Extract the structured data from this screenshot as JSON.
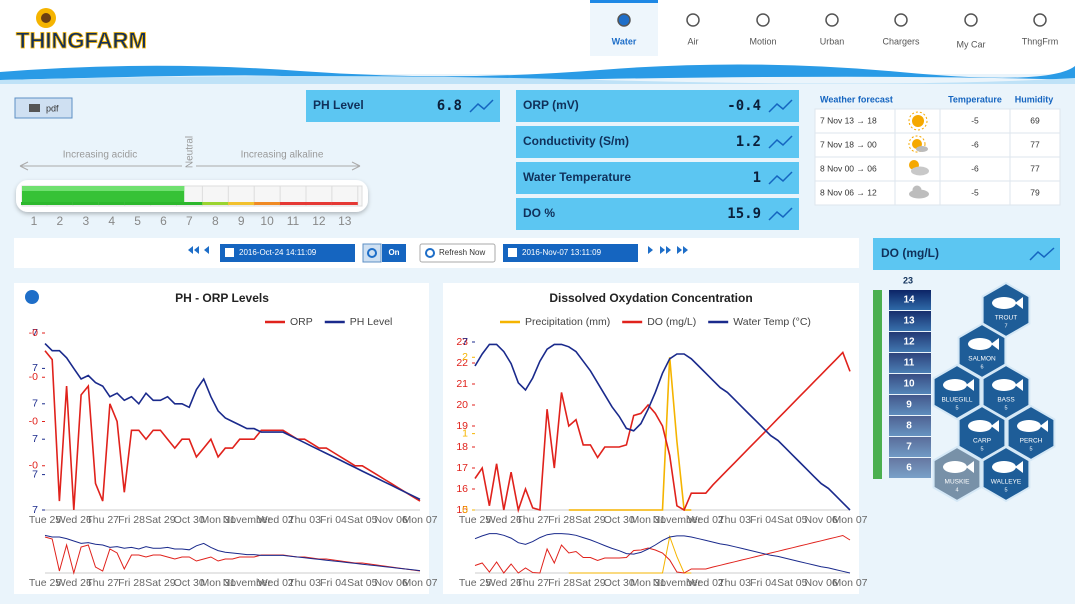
{
  "header": {
    "logo": "THINGFARM",
    "nav": [
      {
        "label": "Water",
        "active": true
      },
      {
        "label": "Air"
      },
      {
        "label": "Motion"
      },
      {
        "label": "Urban"
      },
      {
        "label": "Chargers"
      },
      {
        "label": "My Car"
      },
      {
        "label": "ThngFrm"
      }
    ]
  },
  "toolbar": {
    "pdf": "pdf"
  },
  "ph_scale": {
    "acidic": "Increasing acidic",
    "neutral": "Neutral",
    "alkaline": "Increasing alkaline",
    "ticks": [
      1,
      2,
      3,
      4,
      5,
      6,
      7,
      8,
      9,
      10,
      11,
      12,
      13
    ]
  },
  "metrics": [
    {
      "label": "PH Level",
      "value": 6.8
    },
    {
      "label": "ORP (mV)",
      "value": -0.4,
      "color": "#1fd21f"
    },
    {
      "label": "Conductivity (S/m)",
      "value": 1.2
    },
    {
      "label": "Water Temperature",
      "value": 1
    },
    {
      "label": "DO %",
      "value": 15.9
    }
  ],
  "weather": {
    "headers": [
      "Weather forecast",
      "Temperature",
      "Humidity"
    ],
    "rows": [
      {
        "period": "7 Nov 13 → 18",
        "temperature": -5,
        "humidity": 69
      },
      {
        "period": "7 Nov 18 → 00",
        "temperature": -6,
        "humidity": 77
      },
      {
        "period": "8 Nov 00 → 06",
        "temperature": -6,
        "humidity": 77
      },
      {
        "period": "8 Nov 06 → 12",
        "temperature": -5,
        "humidity": 79
      }
    ]
  },
  "controls": {
    "from": "2016-Oct-24 14:11:09",
    "toggle": "On",
    "refresh": "Refresh Now",
    "to": "2016-Nov-07 13:11:09"
  },
  "do_panel": {
    "title": "DO (mg/L)",
    "max": 23,
    "levels": [
      14,
      13,
      12,
      11,
      10,
      9,
      8,
      7,
      6
    ],
    "fish": [
      {
        "name": "TROUT",
        "value": 7
      },
      {
        "name": "SALMON",
        "value": 6
      },
      {
        "name": "BLUEGILL",
        "value": 5
      },
      {
        "name": "BASS",
        "value": 5
      },
      {
        "name": "CARP",
        "value": 5
      },
      {
        "name": "PERCH",
        "value": 5
      },
      {
        "name": "MUSKIE",
        "value": 4
      },
      {
        "name": "WALLEYE",
        "value": 5
      }
    ]
  },
  "charts": [
    {
      "type": "line",
      "title": "PH - ORP Levels",
      "categories": [
        "Tue 25",
        "Wed 26",
        "Thu 27",
        "Fri 28",
        "Sat 29",
        "Oct 30",
        "Mon 31",
        "November",
        "Wed 02",
        "Thu 03",
        "Fri 04",
        "Sat 05",
        "Nov 06",
        "Mon 07"
      ],
      "ylim": [
        6.5,
        7.0
      ],
      "yticks": [
        {
          "value": 6.5,
          "label": "7"
        },
        {
          "value": 6.6,
          "label": "7"
        },
        {
          "value": 6.7,
          "label": "7"
        },
        {
          "value": 6.8,
          "label": "7"
        },
        {
          "value": 6.9,
          "label": "7"
        },
        {
          "value": 7.0,
          "label": "7"
        }
      ],
      "y2lim": [
        -0.5,
        -0.3
      ],
      "y2ticks": [
        {
          "value": -0.45,
          "label": "-0"
        },
        {
          "value": -0.4,
          "label": "-0"
        },
        {
          "value": -0.35,
          "label": "-0"
        },
        {
          "value": -0.3,
          "label": "-0"
        }
      ],
      "series": [
        {
          "name": "ORP",
          "color": "#e0221c",
          "axis": "y2",
          "values": [
            -0.32,
            -0.33,
            -0.49,
            -0.36,
            -0.5,
            -0.37,
            -0.36,
            -0.47,
            -0.49,
            -0.38,
            -0.4,
            -0.48,
            -0.41,
            -0.41,
            -0.42,
            -0.41,
            -0.41,
            -0.42,
            -0.43,
            -0.42,
            -0.42,
            -0.44,
            -0.43,
            -0.42,
            -0.44,
            -0.43,
            -0.43,
            -0.42,
            -0.42,
            -0.42,
            -0.41,
            -0.41,
            -0.41,
            -0.41,
            -0.415,
            -0.42,
            -0.42,
            -0.425,
            -0.43,
            -0.43,
            -0.435,
            -0.44,
            -0.445,
            -0.45,
            -0.45,
            -0.455,
            -0.46,
            -0.465,
            -0.47,
            -0.475,
            -0.48,
            -0.485,
            -0.49
          ]
        },
        {
          "name": "PH Level",
          "color": "#1a2a8c",
          "values": [
            6.97,
            6.95,
            6.95,
            6.93,
            6.9,
            6.87,
            6.88,
            6.86,
            6.85,
            6.82,
            6.83,
            6.81,
            6.82,
            6.8,
            6.83,
            6.81,
            6.81,
            6.82,
            6.8,
            6.8,
            6.79,
            6.84,
            6.87,
            6.82,
            6.78,
            6.76,
            6.75,
            6.74,
            6.73,
            6.73,
            6.72,
            6.72,
            6.72,
            6.72,
            6.71,
            6.7,
            6.69,
            6.68,
            6.67,
            6.66,
            6.65,
            6.64,
            6.63,
            6.62,
            6.61,
            6.6,
            6.59,
            6.58,
            6.57,
            6.56,
            6.55,
            6.54,
            6.53
          ]
        }
      ]
    },
    {
      "type": "line",
      "title": "Dissolved Oxydation Concentration",
      "categories": [
        "Tue 25",
        "Wed 26",
        "Thu 27",
        "Fri 28",
        "Sat 29",
        "Oct 30",
        "Mon 31",
        "November",
        "Wed 02",
        "Thu 03",
        "Fri 04",
        "Sat 05",
        "Nov 06",
        "Mon 07"
      ],
      "ylim": [
        15,
        23
      ],
      "yticks": [
        15,
        16,
        17,
        18,
        19,
        20,
        21,
        22,
        23
      ],
      "y2lim": [
        0,
        7
      ],
      "y2ticks": [
        7
      ],
      "y3lim": [
        0,
        2.2
      ],
      "y3ticks": [
        0,
        1,
        2
      ],
      "series": [
        {
          "name": "Precipitation (mm)",
          "color": "#f5b400",
          "axis": "y3",
          "values": [
            null,
            null,
            null,
            null,
            null,
            null,
            null,
            null,
            null,
            null,
            null,
            null,
            null,
            0,
            0,
            0,
            0,
            0,
            0,
            0,
            0,
            0,
            0,
            0,
            0,
            0,
            0,
            2,
            0.9,
            0,
            0,
            null,
            null,
            null,
            null,
            null,
            null,
            null,
            null,
            null,
            null,
            null,
            null,
            null,
            null,
            null,
            null,
            null,
            null,
            null,
            null,
            null,
            null
          ]
        },
        {
          "name": "DO (mg/L)",
          "color": "#e0221c",
          "values": [
            16.5,
            17,
            15.2,
            17.2,
            15,
            16.8,
            15,
            16,
            15.1,
            15,
            19.8,
            17,
            20.6,
            19,
            19.3,
            18.1,
            18.1,
            17.5,
            18,
            18,
            18,
            18.1,
            19.5,
            19.6,
            20,
            19.6,
            19,
            17.6,
            15.2,
            15,
            15.8,
            15.8,
            15.8,
            16.2,
            16.55,
            16.9,
            17.25,
            17.6,
            17.95,
            18.3,
            18.65,
            19,
            19.35,
            19.7,
            20.05,
            20.4,
            20.75,
            21.1,
            21.45,
            21.8,
            22.15,
            22.5,
            21.6
          ]
        },
        {
          "name": "Water Temp (°C)",
          "color": "#1a2a8c",
          "axis": "y2",
          "values": [
            6,
            6.5,
            6.9,
            6.9,
            6.6,
            6.1,
            5.3,
            5,
            5.5,
            6.2,
            6.7,
            6.9,
            6.9,
            6.8,
            6.6,
            6.2,
            5.8,
            5.3,
            4.8,
            4.3,
            3.9,
            3.4,
            3.3,
            3.6,
            4.2,
            4.9,
            5.7,
            6.3,
            6.5,
            6.5,
            6.3,
            6,
            5.7,
            5.4,
            5.1,
            4.9,
            4.6,
            4.3,
            4,
            3.7,
            3.4,
            3.1,
            2.9,
            2.6,
            2.3,
            2,
            1.7,
            1.4,
            1.1,
            0.9,
            0.6,
            0.3,
            0
          ]
        }
      ]
    }
  ]
}
